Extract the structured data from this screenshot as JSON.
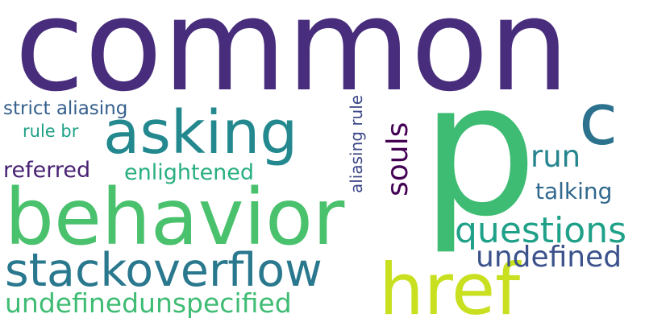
{
  "words": {
    "common": {
      "text": "common",
      "color": "#472d7b"
    },
    "p": {
      "text": "p",
      "color": "#3fbc73"
    },
    "behavior": {
      "text": "behavior",
      "color": "#4ac16d"
    },
    "href": {
      "text": "href",
      "color": "#c8e020"
    },
    "asking": {
      "text": "asking",
      "color": "#23898e"
    },
    "stackoverflow": {
      "text": "stackoverflow",
      "color": "#2a788e"
    },
    "c": {
      "text": "c",
      "color": "#2c728e"
    },
    "questions": {
      "text": "questions",
      "color": "#1fa088"
    },
    "undefined_right": {
      "text": "undefined",
      "color": "#3b528b"
    },
    "undefinedunspecified": {
      "text": "undefinedunspecified",
      "color": "#3fbc73"
    },
    "run": {
      "text": "run",
      "color": "#25848e"
    },
    "talking": {
      "text": "talking",
      "color": "#31688e"
    },
    "souls": {
      "text": "souls",
      "color": "#440154"
    },
    "aliasing_rule": {
      "text": "aliasing rule",
      "color": "#3e4989"
    },
    "strict_aliasing": {
      "text": "strict aliasing",
      "color": "#355f8d"
    },
    "rule_br": {
      "text": "rule br",
      "color": "#1fa187"
    },
    "referred": {
      "text": "referred",
      "color": "#482173"
    },
    "enlightened": {
      "text": "enlightened",
      "color": "#29af7f"
    }
  }
}
